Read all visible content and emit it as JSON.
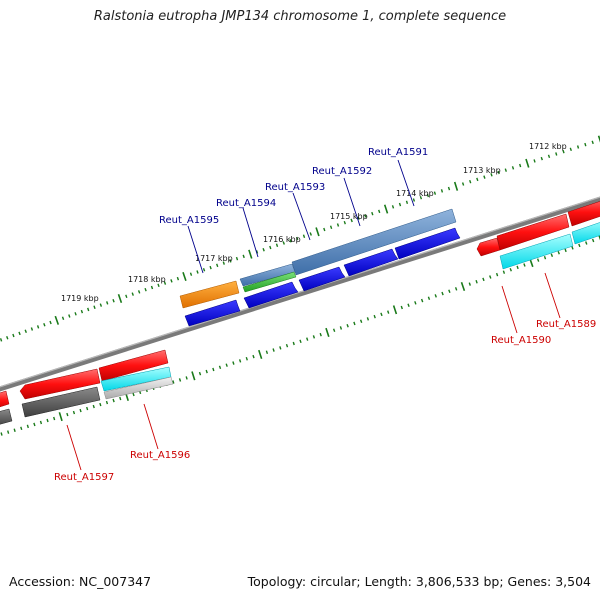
{
  "title": "Ralstonia eutropha JMP134 chromosome 1, complete sequence",
  "accession": "Accession: NC_007347",
  "summary": "Topology: circular; Length: 3,806,533 bp; Genes: 3,504",
  "ticks": [
    "1712 kbp",
    "1713 kbp",
    "1714 kbp",
    "1715 kbp",
    "1716 kbp",
    "1717 kbp",
    "1718 kbp",
    "1719 kbp"
  ],
  "genes_forward": [
    "Reut_A1591",
    "Reut_A1592",
    "Reut_A1593",
    "Reut_A1594",
    "Reut_A1595"
  ],
  "genes_reverse": [
    "Reut_A1589",
    "Reut_A1590",
    "Reut_A1596",
    "Reut_A1597"
  ],
  "colors": {
    "forward_label": "#00008b",
    "reverse_label": "#cc0000",
    "backbone": "#7a7a7a",
    "tick": "#1a7a1a",
    "blue": "#0000dd",
    "steelblue": "#4f7fb5",
    "red": "#ee0000",
    "cyan": "#00e8f0",
    "gray": "#555555",
    "orange": "#ff8c00",
    "green": "#33bb33"
  }
}
